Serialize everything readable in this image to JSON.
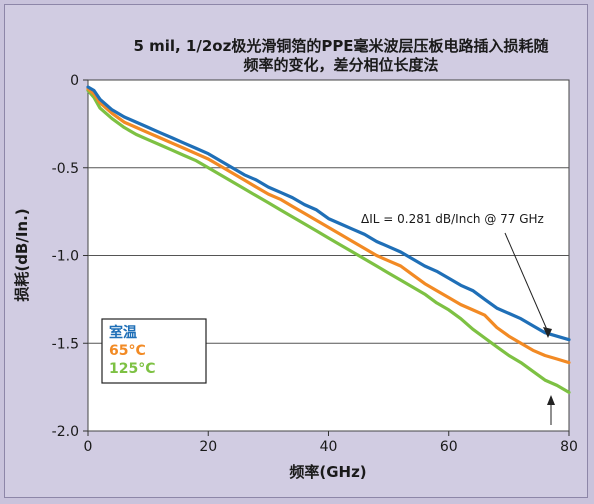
{
  "chart_data": {
    "type": "line",
    "title_lines": [
      "5 mil, 1/2oz极光滑铜箔的PPE毫米波层压板电路插入损耗随",
      "频率的变化，差分相位长度法"
    ],
    "xlabel": "频率(GHz)",
    "ylabel": "损耗(dB/In.)",
    "xlim": [
      0,
      80
    ],
    "ylim": [
      -2.0,
      0
    ],
    "xticks": [
      0,
      20,
      40,
      60,
      80
    ],
    "yticks": [
      0,
      -0.5,
      -1.0,
      -1.5,
      -2.0
    ],
    "xtick_labels": [
      "0",
      "20",
      "40",
      "60",
      "80"
    ],
    "ytick_labels": [
      "0",
      "-0.5",
      "-1.0",
      "-1.5",
      "-2.0"
    ],
    "grid": "horizontal",
    "legend_position": "bottom-left",
    "annotation": "ΔIL = 0.281 dB/Inch @ 77 GHz",
    "series": [
      {
        "name": "室温",
        "color": "#1f6fb7",
        "x": [
          0,
          1,
          2,
          4,
          6,
          8,
          10,
          12,
          14,
          16,
          18,
          20,
          22,
          24,
          26,
          28,
          30,
          32,
          34,
          36,
          38,
          40,
          42,
          44,
          46,
          48,
          50,
          52,
          54,
          56,
          58,
          60,
          62,
          64,
          66,
          68,
          70,
          72,
          74,
          76,
          78,
          80
        ],
        "y": [
          -0.04,
          -0.06,
          -0.11,
          -0.17,
          -0.21,
          -0.24,
          -0.27,
          -0.3,
          -0.33,
          -0.36,
          -0.39,
          -0.42,
          -0.46,
          -0.5,
          -0.54,
          -0.57,
          -0.61,
          -0.64,
          -0.67,
          -0.71,
          -0.74,
          -0.79,
          -0.82,
          -0.85,
          -0.88,
          -0.92,
          -0.95,
          -0.98,
          -1.02,
          -1.06,
          -1.09,
          -1.13,
          -1.17,
          -1.2,
          -1.25,
          -1.3,
          -1.33,
          -1.36,
          -1.4,
          -1.44,
          -1.46,
          -1.48
        ]
      },
      {
        "name": "65°C",
        "color": "#f28a24",
        "x": [
          0,
          1,
          2,
          4,
          6,
          8,
          10,
          12,
          14,
          16,
          18,
          20,
          22,
          24,
          26,
          28,
          30,
          32,
          34,
          36,
          38,
          40,
          42,
          44,
          46,
          48,
          50,
          52,
          54,
          56,
          58,
          60,
          62,
          64,
          66,
          68,
          70,
          72,
          74,
          76,
          78,
          80
        ],
        "y": [
          -0.05,
          -0.08,
          -0.13,
          -0.19,
          -0.24,
          -0.27,
          -0.3,
          -0.33,
          -0.36,
          -0.39,
          -0.42,
          -0.45,
          -0.49,
          -0.53,
          -0.57,
          -0.61,
          -0.65,
          -0.68,
          -0.72,
          -0.76,
          -0.8,
          -0.84,
          -0.88,
          -0.92,
          -0.96,
          -1.0,
          -1.03,
          -1.06,
          -1.11,
          -1.16,
          -1.2,
          -1.24,
          -1.28,
          -1.31,
          -1.34,
          -1.41,
          -1.46,
          -1.5,
          -1.54,
          -1.57,
          -1.59,
          -1.61
        ]
      },
      {
        "name": "125°C",
        "color": "#7dc143",
        "x": [
          0,
          1,
          2,
          4,
          6,
          8,
          10,
          12,
          14,
          16,
          18,
          20,
          22,
          24,
          26,
          28,
          30,
          32,
          34,
          36,
          38,
          40,
          42,
          44,
          46,
          48,
          50,
          52,
          54,
          56,
          58,
          60,
          62,
          64,
          66,
          68,
          70,
          72,
          74,
          76,
          78,
          80
        ],
        "y": [
          -0.06,
          -0.1,
          -0.16,
          -0.22,
          -0.27,
          -0.31,
          -0.34,
          -0.37,
          -0.4,
          -0.43,
          -0.46,
          -0.5,
          -0.54,
          -0.58,
          -0.62,
          -0.66,
          -0.7,
          -0.74,
          -0.78,
          -0.82,
          -0.86,
          -0.9,
          -0.94,
          -0.98,
          -1.02,
          -1.06,
          -1.1,
          -1.14,
          -1.18,
          -1.22,
          -1.27,
          -1.31,
          -1.36,
          -1.42,
          -1.47,
          -1.52,
          -1.57,
          -1.61,
          -1.66,
          -1.71,
          -1.74,
          -1.78
        ]
      }
    ]
  }
}
